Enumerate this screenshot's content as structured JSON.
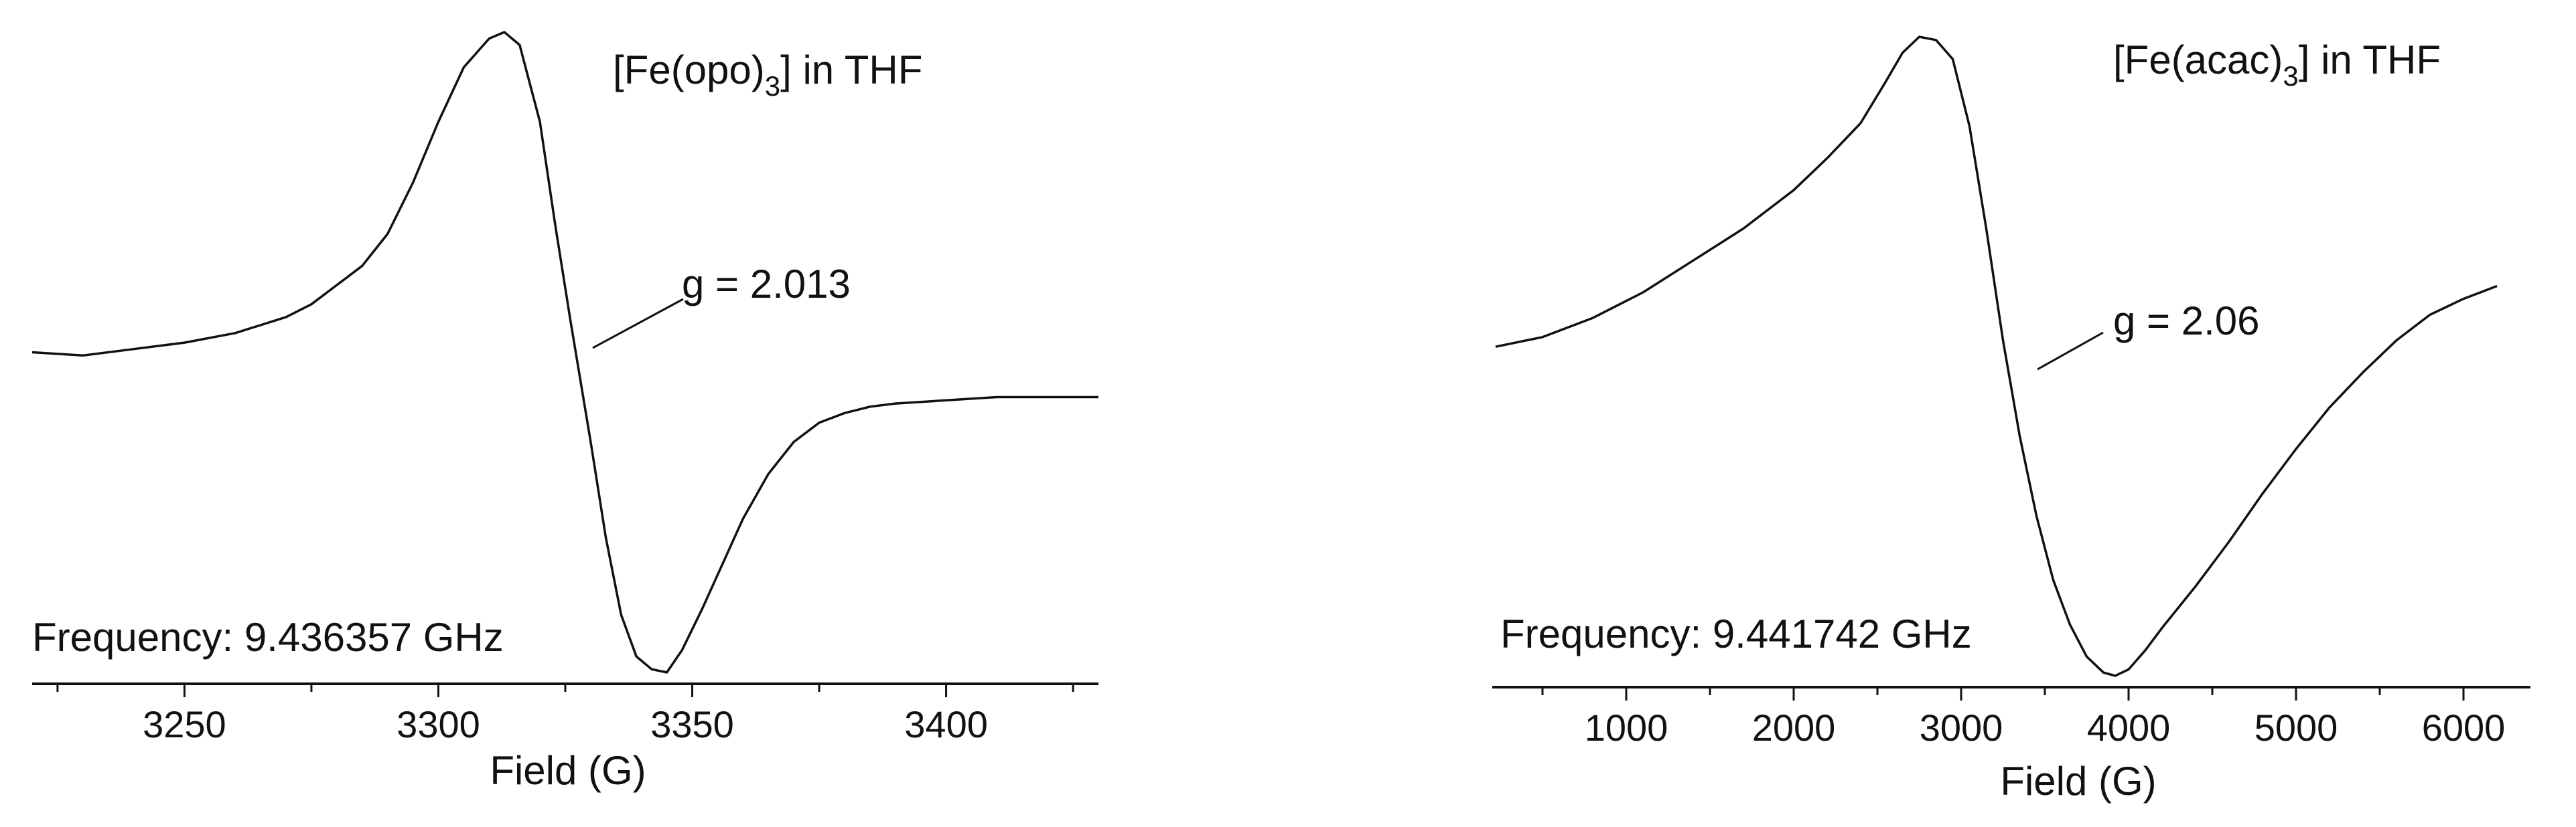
{
  "chart_data": [
    {
      "type": "line",
      "title": "",
      "xlabel": "Field (G)",
      "ylabel": "",
      "xlim": [
        3220,
        3430
      ],
      "ylim": [
        -1.0,
        1.0
      ],
      "xticks": [
        "3250",
        "3300",
        "3350",
        "3400"
      ],
      "tick_values": [
        3250,
        3300,
        3350,
        3400
      ],
      "grid": false,
      "annotations": {
        "sample_pre": "[Fe(opo)",
        "sample_sub": "3",
        "sample_post": "] in THF",
        "g_value": "g = 2.013",
        "frequency": "Frequency: 9.436357 GHz"
      },
      "series": [
        {
          "x": [
            3220,
            3230,
            3240,
            3250,
            3260,
            3270,
            3275,
            3280,
            3285,
            3290,
            3295,
            3300,
            3305,
            3310,
            3313,
            3316,
            3320,
            3323,
            3326,
            3330,
            3333,
            3336,
            3339,
            3342,
            3345,
            3348,
            3352,
            3356,
            3360,
            3365,
            3370,
            3375,
            3380,
            3385,
            3390,
            3400,
            3410,
            3420,
            3430
          ],
          "y": [
            0.0,
            -0.01,
            0.01,
            0.03,
            0.06,
            0.11,
            0.15,
            0.21,
            0.27,
            0.37,
            0.53,
            0.72,
            0.89,
            0.98,
            1.0,
            0.96,
            0.72,
            0.4,
            0.1,
            -0.28,
            -0.58,
            -0.82,
            -0.95,
            -0.99,
            -1.0,
            -0.93,
            -0.8,
            -0.66,
            -0.52,
            -0.38,
            -0.28,
            -0.22,
            -0.19,
            -0.17,
            -0.16,
            -0.15,
            -0.14,
            -0.14,
            -0.14
          ]
        }
      ]
    },
    {
      "type": "line",
      "title": "",
      "xlabel": "Field (G)",
      "ylabel": "",
      "xlim": [
        200,
        6400
      ],
      "ylim": [
        -1.0,
        1.0
      ],
      "xticks": [
        "1000",
        "2000",
        "3000",
        "4000",
        "5000",
        "6000"
      ],
      "tick_values": [
        1000,
        2000,
        3000,
        4000,
        5000,
        6000
      ],
      "grid": false,
      "annotations": {
        "sample_pre": "[Fe(acac)",
        "sample_sub": "3",
        "sample_post": "] in THF",
        "g_value": "g = 2.06",
        "frequency": "Frequency: 9.441742 GHz"
      },
      "series": [
        {
          "x": [
            220,
            500,
            800,
            1100,
            1400,
            1700,
            2000,
            2200,
            2400,
            2550,
            2650,
            2750,
            2850,
            2950,
            3050,
            3150,
            3250,
            3350,
            3450,
            3550,
            3650,
            3750,
            3850,
            3920,
            4000,
            4100,
            4200,
            4400,
            4600,
            4800,
            5000,
            5200,
            5400,
            5600,
            5800,
            6000,
            6200
          ],
          "y": [
            0.03,
            0.06,
            0.12,
            0.2,
            0.3,
            0.4,
            0.52,
            0.62,
            0.73,
            0.86,
            0.95,
            1.0,
            0.99,
            0.93,
            0.72,
            0.4,
            0.05,
            -0.25,
            -0.5,
            -0.7,
            -0.84,
            -0.94,
            -0.99,
            -1.0,
            -0.98,
            -0.92,
            -0.85,
            -0.72,
            -0.58,
            -0.43,
            -0.29,
            -0.16,
            -0.05,
            0.05,
            0.13,
            0.18,
            0.22
          ]
        }
      ]
    }
  ]
}
